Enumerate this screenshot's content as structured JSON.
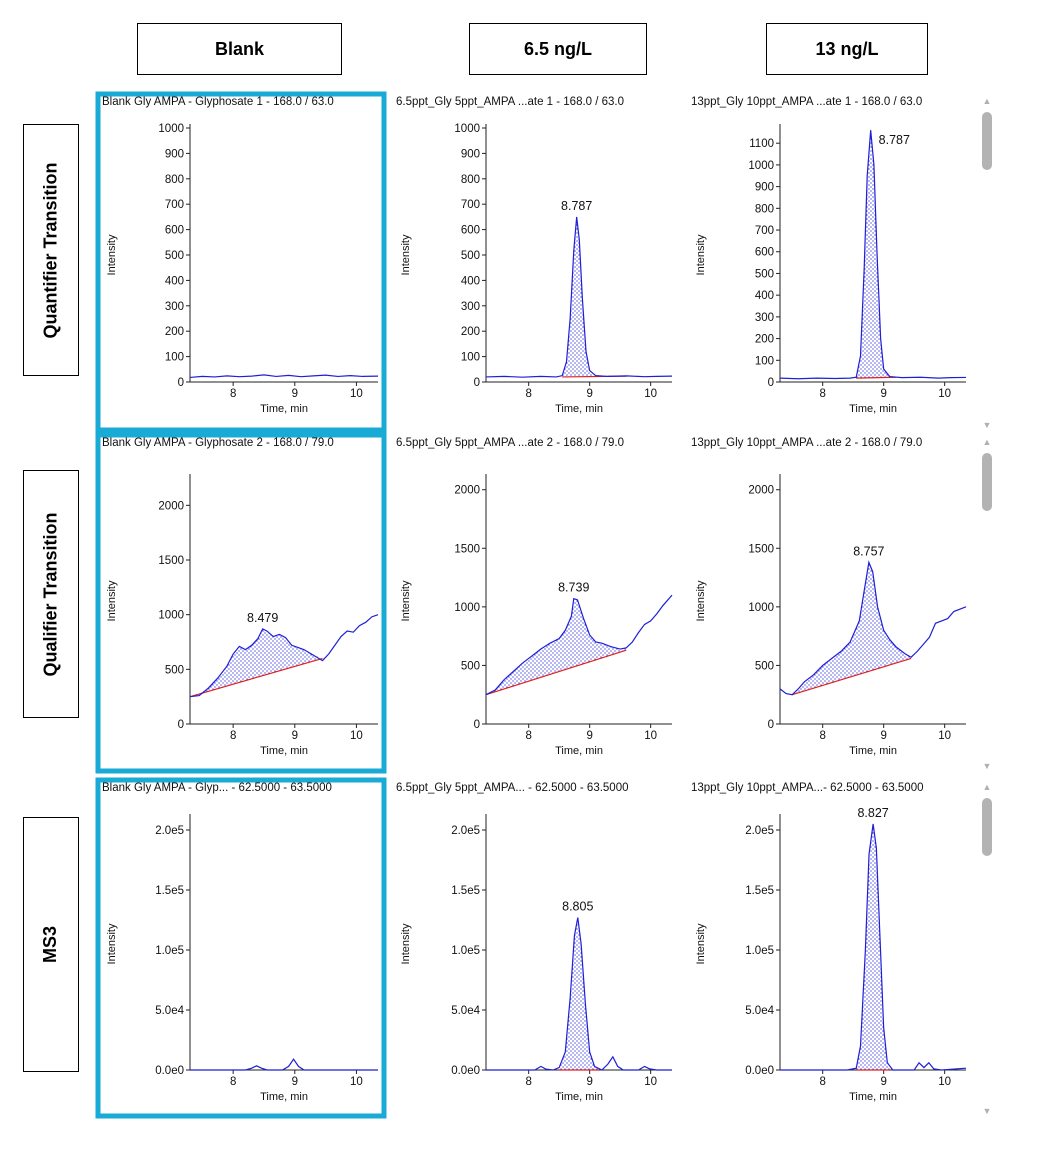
{
  "column_headers": [
    "Blank",
    "6.5 ng/L",
    "13 ng/L"
  ],
  "row_labels": [
    "Quantifier Transition",
    "Qualifier Transition",
    "MS3"
  ],
  "colors": {
    "trace": "#1f1fd6",
    "baseline": "#e02020",
    "highlight": "#1aaad6",
    "fill_dots": "#1f1fd6"
  },
  "scrollbar": {
    "up": "▲",
    "down": "▼"
  },
  "chart_data": [
    {
      "type": "line",
      "row": 0,
      "col": 0,
      "title": "Blank Gly AMPA - Glyphosate 1 - 168.0 / 63.0",
      "xlabel": "Time, min",
      "ylabel": "Intensity",
      "xlim": [
        7.3,
        10.35
      ],
      "ylim": [
        0,
        1000
      ],
      "yticks": [
        0,
        100,
        200,
        300,
        400,
        500,
        600,
        700,
        800,
        900,
        1000
      ],
      "ytick_labels": [
        "0",
        "100",
        "200",
        "300",
        "400",
        "500",
        "600",
        "700",
        "800",
        "900",
        "1000"
      ],
      "xticks": [
        8,
        9,
        10
      ],
      "xtick_labels": [
        "8",
        "9",
        "10"
      ],
      "trace": [
        [
          7.3,
          18
        ],
        [
          7.5,
          22
        ],
        [
          7.7,
          20
        ],
        [
          7.9,
          24
        ],
        [
          8.1,
          21
        ],
        [
          8.3,
          23
        ],
        [
          8.5,
          28
        ],
        [
          8.7,
          22
        ],
        [
          8.9,
          26
        ],
        [
          9.1,
          21
        ],
        [
          9.3,
          24
        ],
        [
          9.5,
          27
        ],
        [
          9.7,
          22
        ],
        [
          9.9,
          25
        ],
        [
          10.1,
          22
        ],
        [
          10.35,
          23
        ]
      ],
      "peak": null
    },
    {
      "type": "line",
      "row": 0,
      "col": 1,
      "title": "6.5ppt_Gly 5ppt_AMPA ...ate 1 - 168.0 / 63.0",
      "xlabel": "Time, min",
      "ylabel": "Intensity",
      "xlim": [
        7.3,
        10.35
      ],
      "ylim": [
        0,
        1000
      ],
      "yticks": [
        0,
        100,
        200,
        300,
        400,
        500,
        600,
        700,
        800,
        900,
        1000
      ],
      "ytick_labels": [
        "0",
        "100",
        "200",
        "300",
        "400",
        "500",
        "600",
        "700",
        "800",
        "900",
        "1000"
      ],
      "xticks": [
        8,
        9,
        10
      ],
      "xtick_labels": [
        "8",
        "9",
        "10"
      ],
      "trace": [
        [
          7.3,
          20
        ],
        [
          7.6,
          22
        ],
        [
          7.9,
          19
        ],
        [
          8.2,
          22
        ],
        [
          8.45,
          20
        ],
        [
          8.55,
          25
        ],
        [
          8.62,
          80
        ],
        [
          8.68,
          250
        ],
        [
          8.74,
          520
        ],
        [
          8.787,
          650
        ],
        [
          8.83,
          560
        ],
        [
          8.88,
          330
        ],
        [
          8.94,
          120
        ],
        [
          9.0,
          45
        ],
        [
          9.1,
          25
        ],
        [
          9.3,
          22
        ],
        [
          9.6,
          24
        ],
        [
          9.9,
          21
        ],
        [
          10.1,
          22
        ],
        [
          10.35,
          23
        ]
      ],
      "peak": {
        "label": "8.787",
        "x": 8.787,
        "y": 650,
        "start": 8.55,
        "end": 9.6,
        "base": [
          20,
          23
        ]
      }
    },
    {
      "type": "line",
      "row": 0,
      "col": 2,
      "title": "13ppt_Gly 10ppt_AMPA ...ate 1 - 168.0 / 63.0",
      "xlabel": "Time, min",
      "ylabel": "Intensity",
      "xlim": [
        7.3,
        10.35
      ],
      "ylim": [
        0,
        1170
      ],
      "yticks": [
        0,
        100,
        200,
        300,
        400,
        500,
        600,
        700,
        800,
        900,
        1000,
        1100
      ],
      "ytick_labels": [
        "0",
        "100",
        "200",
        "300",
        "400",
        "500",
        "600",
        "700",
        "800",
        "900",
        "1000",
        "1100"
      ],
      "xticks": [
        8,
        9,
        10
      ],
      "xtick_labels": [
        "8",
        "9",
        "10"
      ],
      "trace": [
        [
          7.3,
          18
        ],
        [
          7.6,
          15
        ],
        [
          7.9,
          18
        ],
        [
          8.2,
          16
        ],
        [
          8.45,
          18
        ],
        [
          8.55,
          22
        ],
        [
          8.62,
          120
        ],
        [
          8.68,
          520
        ],
        [
          8.73,
          950
        ],
        [
          8.787,
          1160
        ],
        [
          8.84,
          1000
        ],
        [
          8.89,
          600
        ],
        [
          8.95,
          200
        ],
        [
          9.0,
          60
        ],
        [
          9.1,
          25
        ],
        [
          9.3,
          20
        ],
        [
          9.6,
          22
        ],
        [
          9.9,
          18
        ],
        [
          10.1,
          20
        ],
        [
          10.35,
          21
        ]
      ],
      "peak": {
        "label": "8.787",
        "x": 8.787,
        "y": 1160,
        "start": 8.55,
        "end": 9.2,
        "base": [
          18,
          22
        ]
      }
    },
    {
      "type": "line",
      "row": 1,
      "col": 0,
      "title": "Blank Gly AMPA - Glyphosate 2 - 168.0 / 79.0",
      "xlabel": "Time, min",
      "ylabel": "Intensity",
      "xlim": [
        7.3,
        10.35
      ],
      "ylim": [
        0,
        2250
      ],
      "yticks": [
        0,
        500,
        1000,
        1500,
        2000
      ],
      "ytick_labels": [
        "0",
        "500",
        "1000",
        "1500",
        "2000"
      ],
      "xticks": [
        8,
        9,
        10
      ],
      "xtick_labels": [
        "8",
        "9",
        "10"
      ],
      "trace": [
        [
          7.3,
          250
        ],
        [
          7.45,
          260
        ],
        [
          7.6,
          330
        ],
        [
          7.75,
          420
        ],
        [
          7.9,
          530
        ],
        [
          8.0,
          640
        ],
        [
          8.1,
          710
        ],
        [
          8.2,
          680
        ],
        [
          8.3,
          720
        ],
        [
          8.4,
          780
        ],
        [
          8.479,
          870
        ],
        [
          8.55,
          850
        ],
        [
          8.65,
          800
        ],
        [
          8.75,
          820
        ],
        [
          8.85,
          790
        ],
        [
          8.95,
          720
        ],
        [
          9.05,
          700
        ],
        [
          9.15,
          680
        ],
        [
          9.3,
          630
        ],
        [
          9.45,
          580
        ],
        [
          9.55,
          640
        ],
        [
          9.65,
          720
        ],
        [
          9.75,
          800
        ],
        [
          9.85,
          850
        ],
        [
          9.95,
          840
        ],
        [
          10.05,
          900
        ],
        [
          10.15,
          930
        ],
        [
          10.25,
          980
        ],
        [
          10.35,
          1000
        ]
      ],
      "peak": {
        "label": "8.479",
        "x": 8.479,
        "y": 870,
        "start": 7.3,
        "end": 9.45,
        "base": [
          250,
          600
        ]
      }
    },
    {
      "type": "line",
      "row": 1,
      "col": 1,
      "title": "6.5ppt_Gly 5ppt_AMPA ...ate 2 - 168.0 / 79.0",
      "xlabel": "Time, min",
      "ylabel": "Intensity",
      "xlim": [
        7.3,
        10.35
      ],
      "ylim": [
        0,
        2100
      ],
      "yticks": [
        0,
        500,
        1000,
        1500,
        2000
      ],
      "ytick_labels": [
        "0",
        "500",
        "1000",
        "1500",
        "2000"
      ],
      "xticks": [
        8,
        9,
        10
      ],
      "xtick_labels": [
        "8",
        "9",
        "10"
      ],
      "trace": [
        [
          7.3,
          250
        ],
        [
          7.45,
          290
        ],
        [
          7.6,
          380
        ],
        [
          7.75,
          450
        ],
        [
          7.9,
          520
        ],
        [
          8.05,
          580
        ],
        [
          8.2,
          640
        ],
        [
          8.35,
          690
        ],
        [
          8.5,
          730
        ],
        [
          8.6,
          800
        ],
        [
          8.7,
          920
        ],
        [
          8.739,
          1070
        ],
        [
          8.8,
          1060
        ],
        [
          8.9,
          900
        ],
        [
          9.0,
          760
        ],
        [
          9.1,
          700
        ],
        [
          9.2,
          690
        ],
        [
          9.35,
          660
        ],
        [
          9.5,
          640
        ],
        [
          9.6,
          650
        ],
        [
          9.7,
          700
        ],
        [
          9.8,
          780
        ],
        [
          9.9,
          850
        ],
        [
          10.0,
          880
        ],
        [
          10.1,
          940
        ],
        [
          10.2,
          1010
        ],
        [
          10.35,
          1100
        ]
      ],
      "peak": {
        "label": "8.739",
        "x": 8.739,
        "y": 1070,
        "start": 7.3,
        "end": 9.6,
        "base": [
          250,
          630
        ]
      }
    },
    {
      "type": "line",
      "row": 1,
      "col": 2,
      "title": "13ppt_Gly 10ppt_AMPA ...ate 2 - 168.0 / 79.0",
      "xlabel": "Time, min",
      "ylabel": "Intensity",
      "xlim": [
        7.3,
        10.35
      ],
      "ylim": [
        0,
        2100
      ],
      "yticks": [
        0,
        500,
        1000,
        1500,
        2000
      ],
      "ytick_labels": [
        "0",
        "500",
        "1000",
        "1500",
        "2000"
      ],
      "xticks": [
        8,
        9,
        10
      ],
      "xtick_labels": [
        "8",
        "9",
        "10"
      ],
      "trace": [
        [
          7.3,
          300
        ],
        [
          7.4,
          260
        ],
        [
          7.5,
          250
        ],
        [
          7.6,
          300
        ],
        [
          7.7,
          360
        ],
        [
          7.85,
          420
        ],
        [
          8.0,
          500
        ],
        [
          8.15,
          560
        ],
        [
          8.3,
          620
        ],
        [
          8.45,
          700
        ],
        [
          8.6,
          880
        ],
        [
          8.7,
          1200
        ],
        [
          8.757,
          1380
        ],
        [
          8.82,
          1300
        ],
        [
          8.9,
          1000
        ],
        [
          9.0,
          800
        ],
        [
          9.1,
          720
        ],
        [
          9.2,
          660
        ],
        [
          9.35,
          600
        ],
        [
          9.45,
          570
        ],
        [
          9.55,
          620
        ],
        [
          9.65,
          680
        ],
        [
          9.75,
          740
        ],
        [
          9.85,
          860
        ],
        [
          9.95,
          880
        ],
        [
          10.05,
          900
        ],
        [
          10.15,
          960
        ],
        [
          10.35,
          1000
        ]
      ],
      "peak": {
        "label": "8.757",
        "x": 8.757,
        "y": 1380,
        "start": 7.5,
        "end": 9.45,
        "base": [
          250,
          560
        ]
      }
    },
    {
      "type": "line",
      "row": 2,
      "col": 0,
      "title": "Blank Gly AMPA - Glyp... - 62.5000 - 63.5000",
      "xlabel": "Time, min",
      "ylabel": "Intensity",
      "xlim": [
        7.3,
        10.35
      ],
      "ylim": [
        0,
        210000
      ],
      "yticks": [
        0,
        50000,
        100000,
        150000,
        200000
      ],
      "ytick_labels": [
        "0.0e0",
        "5.0e4",
        "1.0e5",
        "1.5e5",
        "2.0e5"
      ],
      "xticks": [
        8,
        9,
        10
      ],
      "xtick_labels": [
        "8",
        "9",
        "10"
      ],
      "trace": [
        [
          7.3,
          0
        ],
        [
          7.8,
          0
        ],
        [
          8.2,
          0
        ],
        [
          8.3,
          1500
        ],
        [
          8.38,
          3500
        ],
        [
          8.46,
          1500
        ],
        [
          8.55,
          0
        ],
        [
          8.8,
          0
        ],
        [
          8.9,
          3000
        ],
        [
          8.98,
          9000
        ],
        [
          9.06,
          3000
        ],
        [
          9.15,
          0
        ],
        [
          9.6,
          0
        ],
        [
          10.0,
          0
        ],
        [
          10.35,
          0
        ]
      ],
      "peak": null
    },
    {
      "type": "line",
      "row": 2,
      "col": 1,
      "title": "6.5ppt_Gly 5ppt_AMPA... - 62.5000 - 63.5000",
      "xlabel": "Time, min",
      "ylabel": "Intensity",
      "xlim": [
        7.3,
        10.35
      ],
      "ylim": [
        0,
        210000
      ],
      "yticks": [
        0,
        50000,
        100000,
        150000,
        200000
      ],
      "ytick_labels": [
        "0.0e0",
        "5.0e4",
        "1.0e5",
        "1.5e5",
        "2.0e5"
      ],
      "xticks": [
        8,
        9,
        10
      ],
      "xtick_labels": [
        "8",
        "9",
        "10"
      ],
      "trace": [
        [
          7.3,
          0
        ],
        [
          7.9,
          0
        ],
        [
          8.1,
          0
        ],
        [
          8.2,
          3000
        ],
        [
          8.28,
          800
        ],
        [
          8.4,
          0
        ],
        [
          8.5,
          2000
        ],
        [
          8.6,
          15000
        ],
        [
          8.68,
          60000
        ],
        [
          8.75,
          112000
        ],
        [
          8.805,
          127000
        ],
        [
          8.86,
          105000
        ],
        [
          8.93,
          55000
        ],
        [
          9.0,
          15000
        ],
        [
          9.08,
          3000
        ],
        [
          9.2,
          0
        ],
        [
          9.3,
          5000
        ],
        [
          9.38,
          11000
        ],
        [
          9.46,
          3000
        ],
        [
          9.55,
          0
        ],
        [
          9.8,
          0
        ],
        [
          9.9,
          3000
        ],
        [
          9.98,
          1000
        ],
        [
          10.1,
          0
        ],
        [
          10.35,
          0
        ]
      ],
      "peak": {
        "label": "8.805",
        "x": 8.805,
        "y": 127000,
        "start": 8.5,
        "end": 9.15,
        "base": [
          0,
          0
        ]
      }
    },
    {
      "type": "line",
      "row": 2,
      "col": 2,
      "title": "13ppt_Gly 10ppt_AMPA...- 62.5000 - 63.5000",
      "xlabel": "Time, min",
      "ylabel": "Intensity",
      "xlim": [
        7.3,
        10.35
      ],
      "ylim": [
        0,
        210000
      ],
      "yticks": [
        0,
        50000,
        100000,
        150000,
        200000
      ],
      "ytick_labels": [
        "0.0e0",
        "5.0e4",
        "1.0e5",
        "1.5e5",
        "2.0e5"
      ],
      "xticks": [
        8,
        9,
        10
      ],
      "xtick_labels": [
        "8",
        "9",
        "10"
      ],
      "trace": [
        [
          7.3,
          0
        ],
        [
          7.9,
          0
        ],
        [
          8.4,
          0
        ],
        [
          8.55,
          1500
        ],
        [
          8.62,
          20000
        ],
        [
          8.7,
          100000
        ],
        [
          8.76,
          180000
        ],
        [
          8.827,
          205000
        ],
        [
          8.88,
          185000
        ],
        [
          8.94,
          110000
        ],
        [
          9.0,
          35000
        ],
        [
          9.06,
          6000
        ],
        [
          9.15,
          0
        ],
        [
          9.5,
          0
        ],
        [
          9.58,
          6000
        ],
        [
          9.66,
          2000
        ],
        [
          9.74,
          6000
        ],
        [
          9.82,
          1000
        ],
        [
          9.95,
          0
        ],
        [
          10.35,
          1500
        ]
      ],
      "peak": {
        "label": "8.827",
        "x": 8.827,
        "y": 205000,
        "start": 8.55,
        "end": 9.1,
        "base": [
          0,
          0
        ]
      }
    }
  ]
}
